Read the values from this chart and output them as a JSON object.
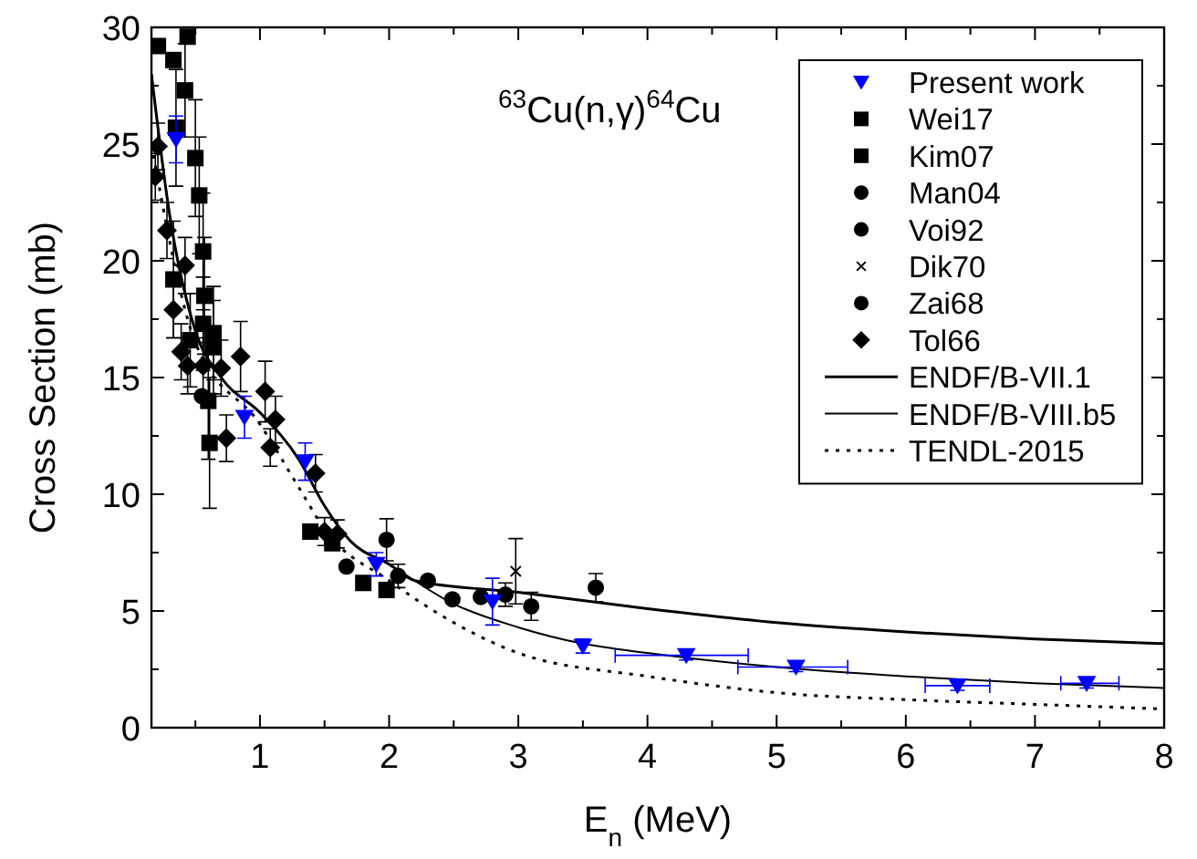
{
  "chart_data": {
    "type": "scatter",
    "xlabel": "E$_{n}$ (MeV)",
    "ylabel": "Cross Section (mb)",
    "annotations": [
      "$^{63}$Cu(n,γ)$^{64}$Cu"
    ],
    "xlim": [
      0.16,
      8
    ],
    "xticks": [
      {
        "value": 0.5,
        "label": null
      },
      1,
      {
        "value": 1.5,
        "label": null
      },
      2,
      {
        "value": 2.5,
        "label": null
      },
      3,
      {
        "value": 3.5,
        "label": null
      },
      4,
      {
        "value": 4.5,
        "label": null
      },
      5,
      {
        "value": 5.5,
        "label": null
      },
      6,
      {
        "value": 6.5,
        "label": null
      },
      7,
      {
        "value": 7.5,
        "label": null
      },
      8
    ],
    "ylim": [
      0,
      30
    ],
    "yticks": [
      0,
      {
        "value": 2.5,
        "label": null
      },
      5,
      {
        "value": 7.5,
        "label": null
      },
      10,
      {
        "value": 12.5,
        "label": null
      },
      15,
      {
        "value": 17.5,
        "label": null
      },
      20,
      {
        "value": 22.5,
        "label": null
      },
      25,
      {
        "value": 27.5,
        "label": null
      },
      30
    ],
    "grid": false,
    "legend": "top right",
    "series": [
      {
        "name": "Present work",
        "color": "#0000ff",
        "marker": "triangle",
        "x": [
          0.35,
          0.88,
          1.35,
          1.9,
          2.8,
          3.5,
          4.3,
          5.15,
          6.4,
          7.4
        ],
        "values": [
          25.2,
          13.3,
          11.4,
          7.0,
          5.4,
          3.5,
          3.1,
          2.6,
          1.8,
          1.9
        ],
        "errors": [
          1.0,
          0.9,
          0.8,
          0.5,
          1.0,
          0.3,
          0.2,
          0.2,
          0.2,
          0.2
        ],
        "xerrors": [
          null,
          null,
          null,
          null,
          null,
          null,
          [
            3.75,
            4.78
          ],
          [
            4.7,
            5.55
          ],
          [
            6.15,
            6.65
          ],
          [
            7.2,
            7.65
          ]
        ]
      },
      {
        "name": "Wei17",
        "color": "#000000",
        "marker": "square",
        "x": [
          0.21,
          0.33,
          0.42,
          0.44,
          0.35,
          0.5,
          0.53,
          0.56,
          0.57,
          0.33,
          0.56,
          0.64,
          0.64,
          0.6,
          0.61,
          0.46
        ],
        "values": [
          29.2,
          28.6,
          27.3,
          29.6,
          25.7,
          24.4,
          22.8,
          20.4,
          18.5,
          19.2,
          17.3,
          16.9,
          16.3,
          14.0,
          12.2,
          16.6
        ],
        "errors": [
          null,
          null,
          2,
          null,
          2.5,
          2.5,
          2.5,
          2.5,
          2.5,
          2.5,
          2,
          2,
          2,
          2.5,
          2.8,
          2
        ]
      },
      {
        "name": "Kim07",
        "color": "#000000",
        "marker": "square",
        "x": [
          1.39,
          1.56,
          1.8,
          1.98
        ],
        "values": [
          8.4,
          7.9,
          6.2,
          5.9
        ]
      },
      {
        "name": "Man04",
        "color": "#000000",
        "marker": "circle",
        "x": [
          0.55
        ],
        "values": [
          14.2
        ]
      },
      {
        "name": "Voi92",
        "color": "#000000",
        "marker": "circle",
        "x": [
          1.98
        ],
        "values": [
          8.05
        ],
        "errors": [
          0.9
        ]
      },
      {
        "name": "Dik70",
        "color": "#000000",
        "marker": "cross",
        "x": [
          2.98
        ],
        "values": [
          6.7
        ],
        "errors": [
          1.4
        ]
      },
      {
        "name": "Zai68",
        "color": "#000000",
        "marker": "circle",
        "x": [
          1.67,
          2.07,
          2.3,
          2.49,
          2.71,
          2.9,
          3.1,
          3.6
        ],
        "values": [
          6.9,
          6.5,
          6.3,
          5.5,
          5.6,
          5.7,
          5.2,
          6.0
        ],
        "errors": [
          null,
          0.5,
          null,
          null,
          null,
          0.5,
          0.6,
          0.6
        ]
      },
      {
        "name": "Tol66",
        "color": "#000000",
        "marker": "diamond",
        "x": [
          0.19,
          0.21,
          0.28,
          0.33,
          0.39,
          0.42,
          0.44,
          0.56,
          0.7,
          0.74,
          0.85,
          1.04,
          1.08,
          1.12,
          1.43,
          1.5,
          1.6
        ],
        "values": [
          23.6,
          24.9,
          21.3,
          17.9,
          16.1,
          19.8,
          15.5,
          15.5,
          15.4,
          12.4,
          15.9,
          14.4,
          12.0,
          13.2,
          10.9,
          8.4,
          8.3
        ],
        "errors": [
          1,
          1,
          1.2,
          1.2,
          1.2,
          1.2,
          1.2,
          1.2,
          1.2,
          1,
          1.5,
          1.3,
          0.8,
          1,
          0.8,
          0.6,
          0.6
        ]
      },
      {
        "name": "ENDF/B-VII.1",
        "type": "line",
        "color": "#000000",
        "line_style": "solid",
        "x": [
          0.16,
          0.3,
          0.5,
          0.7,
          1.0,
          1.3,
          1.5,
          1.7,
          2.0,
          2.2,
          3,
          4,
          5,
          6,
          7,
          8
        ],
        "values": [
          28,
          22,
          17,
          15,
          13.5,
          11.5,
          9.5,
          8,
          7.0,
          6.3,
          5.8,
          5.1,
          4.5,
          4.1,
          3.8,
          3.6
        ]
      },
      {
        "name": "ENDF/B-VIII.b5",
        "type": "line",
        "color": "#000000",
        "line_style": "solid",
        "x": [
          0.16,
          0.3,
          0.5,
          0.7,
          1.0,
          1.3,
          1.5,
          1.7,
          2.0,
          2.5,
          3,
          3.5,
          4,
          5,
          6,
          7,
          8
        ],
        "values": [
          28,
          22,
          17,
          15,
          13.5,
          11.5,
          9.5,
          8,
          7.0,
          5.3,
          4.3,
          3.6,
          3.2,
          2.6,
          2.2,
          1.9,
          1.7
        ]
      },
      {
        "name": "TENDL-2015",
        "type": "line",
        "color": "#000000",
        "line_style": "dotted",
        "x": [
          0.16,
          0.5,
          1,
          1.3,
          1.5,
          2,
          2.5,
          3,
          4,
          5,
          6,
          7,
          8
        ],
        "values": [
          25,
          16.5,
          13,
          10.3,
          8.5,
          6.3,
          4.5,
          3.2,
          2.2,
          1.5,
          1.2,
          1.0,
          0.8
        ]
      }
    ]
  }
}
